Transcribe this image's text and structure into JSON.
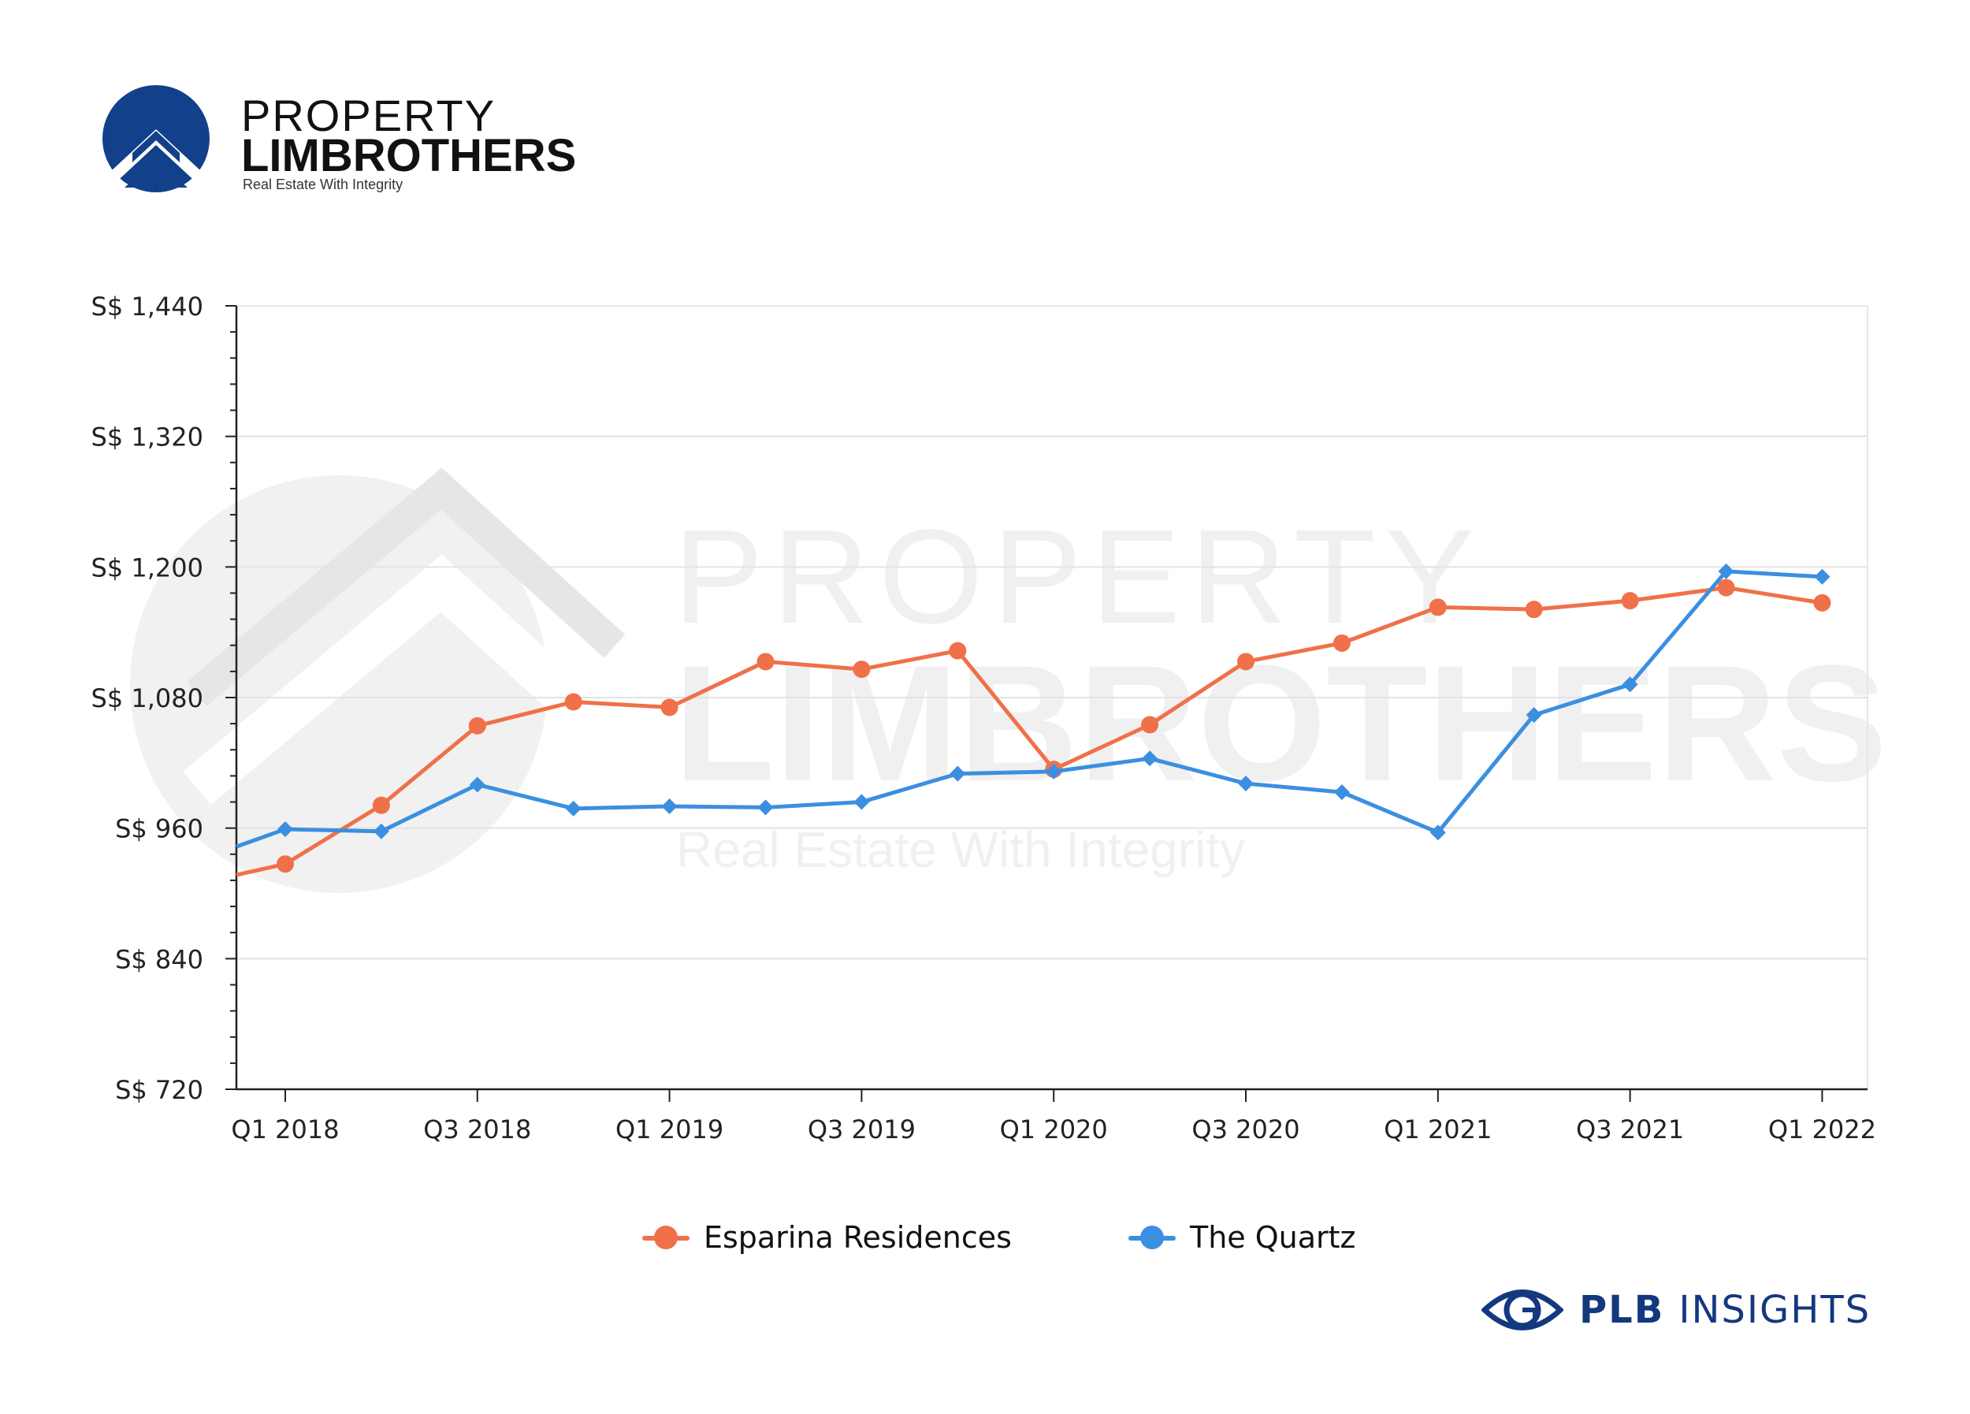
{
  "brand": {
    "name_line1": "PROPERTY",
    "name_line2": "LIMBROTHERS",
    "tagline": "Real Estate With Integrity",
    "color": "#12408a"
  },
  "watermark": {
    "line1": "PROPERTY",
    "line2": "LIMBROTHERS",
    "line3": "Real Estate With Integrity"
  },
  "footer": {
    "brand_bold": "PLB",
    "brand_rest": "INSIGHTS",
    "icon": "eye-g-icon",
    "color": "#14387f"
  },
  "chart_data": {
    "type": "line",
    "title": "",
    "xlabel": "",
    "ylabel": "",
    "grid": true,
    "legend_position": "bottom",
    "ylim": [
      720,
      1440
    ],
    "y_ticks": [
      720,
      840,
      960,
      1080,
      1200,
      1320,
      1440
    ],
    "y_tick_labels": [
      "S$ 720",
      "S$ 840",
      "S$ 960",
      "S$ 1,080",
      "S$ 1,200",
      "S$ 1,320",
      "S$ 1,440"
    ],
    "categories": [
      "Q1 2018",
      "Q2 2018",
      "Q3 2018",
      "Q4 2018",
      "Q1 2019",
      "Q2 2019",
      "Q3 2019",
      "Q4 2019",
      "Q1 2020",
      "Q2 2020",
      "Q3 2020",
      "Q4 2020",
      "Q1 2021",
      "Q2 2021",
      "Q3 2021",
      "Q4 2021",
      "Q1 2022"
    ],
    "x_tick_labels": [
      "Q1 2018",
      "Q3 2018",
      "Q1 2019",
      "Q3 2019",
      "Q1 2020",
      "Q3 2020",
      "Q1 2021",
      "Q3 2021",
      "Q1 2022"
    ],
    "x_tick_categories": [
      "Q1 2018",
      "Q3 2018",
      "Q1 2019",
      "Q3 2019",
      "Q1 2020",
      "Q3 2020",
      "Q1 2021",
      "Q3 2021",
      "Q1 2022"
    ],
    "series": [
      {
        "name": "Esparina Residences",
        "color": "#f0704a",
        "marker": "circle",
        "start_value": 917,
        "values": [
          927,
          981,
          1054,
          1076,
          1071,
          1113,
          1106,
          1123,
          1014,
          1055,
          1113,
          1130,
          1163,
          1161,
          1169,
          1181,
          1167
        ]
      },
      {
        "name": "The Quartz",
        "color": "#3b8fe0",
        "marker": "diamond",
        "start_value": 943,
        "values": [
          959,
          957,
          1000,
          978,
          980,
          979,
          984,
          1010,
          1012,
          1024,
          1001,
          993,
          956,
          1064,
          1092,
          1196,
          1191
        ]
      }
    ]
  }
}
